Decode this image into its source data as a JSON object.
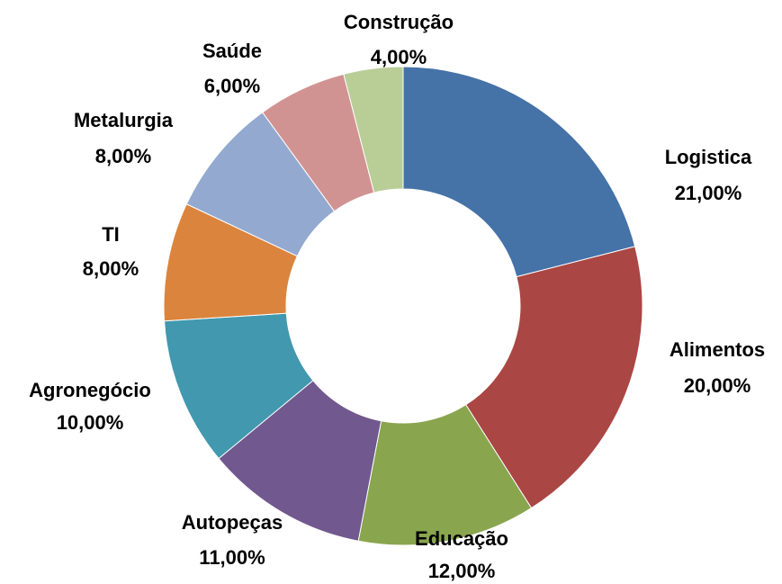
{
  "chart_data": {
    "type": "donut",
    "categories": [
      "Logistica",
      "Alimentos",
      "Educação",
      "Autopeças",
      "Agronegócio",
      "TI",
      "Metalurgia",
      "Saúde",
      "Construção"
    ],
    "values": [
      21,
      20,
      12,
      11,
      10,
      8,
      8,
      6,
      4
    ],
    "value_labels": [
      "21,00%",
      "20,00%",
      "12,00%",
      "11,00%",
      "10,00%",
      "8,00%",
      "8,00%",
      "6,00%",
      "4,00%"
    ],
    "colors": [
      "#4572a7",
      "#aa4643",
      "#89a54e",
      "#71588f",
      "#4198af",
      "#db843d",
      "#93a9cf",
      "#d19392",
      "#b9cd96"
    ]
  }
}
